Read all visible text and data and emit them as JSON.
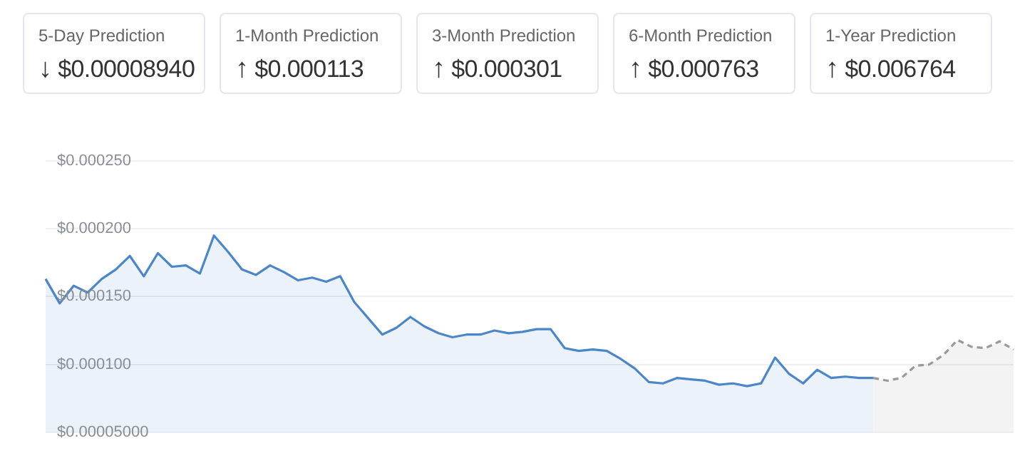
{
  "chart_data": [
    {
      "type": "other",
      "categories": [
        "5-Day Prediction",
        "1-Month Prediction",
        "3-Month Prediction",
        "6-Month Prediction",
        "1-Year Prediction"
      ],
      "value_labels": [
        "↓ $0.00008940",
        "↑ $0.000113",
        "↑ $0.000301",
        "↑ $0.000763",
        "↑ $0.006764"
      ]
    },
    {
      "type": "area",
      "categories": [
        null,
        null,
        null,
        null,
        null,
        null,
        null,
        null,
        null,
        null,
        null,
        null,
        null,
        null,
        null,
        null,
        null,
        null,
        null,
        null,
        null,
        null,
        null,
        null,
        null,
        null,
        null,
        null,
        null,
        null,
        null,
        null,
        null,
        null,
        null,
        null,
        null,
        null,
        null,
        null,
        null,
        null,
        null,
        null,
        null,
        null,
        null,
        null,
        null,
        null,
        null,
        null,
        null,
        null,
        null,
        null,
        null,
        null,
        null,
        null,
        null,
        null,
        null,
        null,
        null,
        null,
        null,
        null,
        null,
        null
      ],
      "series": [
        {
          "color": "#4a86c8",
          "values": [
            0.000163,
            0.000145,
            0.000158,
            0.000153,
            0.000163,
            0.00017,
            0.00018,
            0.000165,
            0.000182,
            0.000172,
            0.000173,
            0.000167,
            0.000195,
            0.000183,
            0.00017,
            0.000166,
            0.000173,
            0.000168,
            0.000162,
            0.000164,
            0.000161,
            0.000165,
            0.000146,
            0.000134,
            0.000122,
            0.000127,
            0.000135,
            0.000128,
            0.000123,
            0.00012,
            0.000122,
            0.000122,
            0.000125,
            0.000123,
            0.000124,
            0.000126,
            0.000126,
            0.000112,
            0.00011,
            0.000111,
            0.00011,
            0.000104,
            9.7e-05,
            8.7e-05,
            8.6e-05,
            9e-05,
            8.9e-05,
            8.8e-05,
            8.5e-05,
            8.6e-05,
            8.4e-05,
            8.6e-05,
            0.000105,
            9.3e-05,
            8.6e-05,
            9.6e-05,
            9e-05,
            9.1e-05,
            9e-05,
            9e-05,
            null,
            null,
            null,
            null,
            null,
            null,
            null,
            null,
            null,
            null
          ]
        },
        {
          "color": "#9a9a9a",
          "line_style": "dashed",
          "values": [
            null,
            null,
            null,
            null,
            null,
            null,
            null,
            null,
            null,
            null,
            null,
            null,
            null,
            null,
            null,
            null,
            null,
            null,
            null,
            null,
            null,
            null,
            null,
            null,
            null,
            null,
            null,
            null,
            null,
            null,
            null,
            null,
            null,
            null,
            null,
            null,
            null,
            null,
            null,
            null,
            null,
            null,
            null,
            null,
            null,
            null,
            null,
            null,
            null,
            null,
            null,
            null,
            null,
            null,
            null,
            null,
            null,
            null,
            null,
            9e-05,
            8.8e-05,
            9e-05,
            9.9e-05,
            0.0001,
            0.000107,
            0.000118,
            0.000113,
            0.000112,
            0.000117,
            0.000111
          ]
        }
      ],
      "ylim": [
        5e-05,
        0.00025
      ],
      "yticks": [
        {
          "value": 5e-05,
          "label": "$0.00005000"
        },
        {
          "value": 0.0001,
          "label": "$0.000100"
        },
        {
          "value": 0.00015,
          "label": "$0.000150"
        },
        {
          "value": 0.0002,
          "label": "$0.000200"
        },
        {
          "value": 0.00025,
          "label": "$0.000250"
        }
      ],
      "grid": "y",
      "legend": false,
      "tick_labels": "y",
      "marker": "none"
    }
  ]
}
